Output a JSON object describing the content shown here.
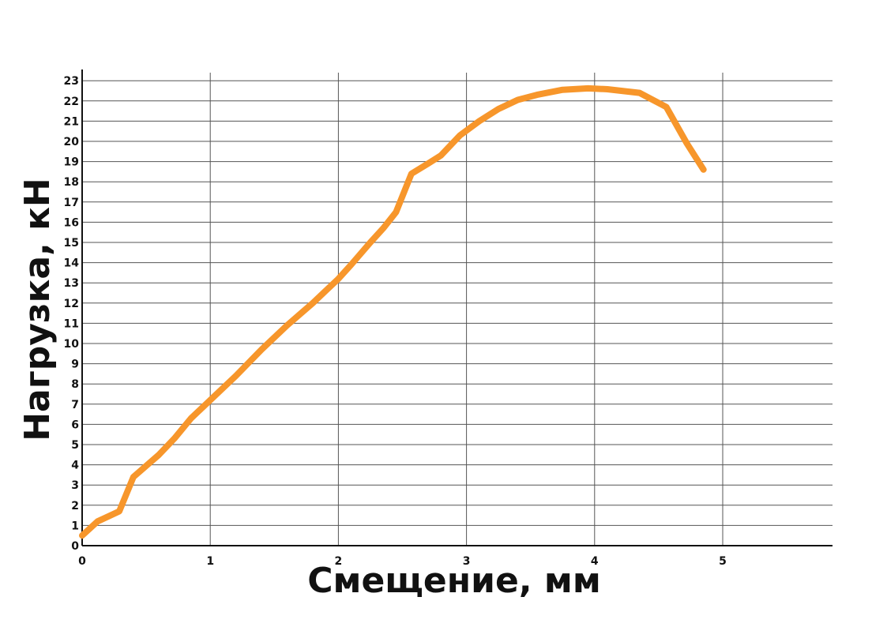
{
  "chart_data": {
    "type": "line",
    "title": "",
    "xlabel": "Смещение, мм",
    "ylabel": "Нагрузка, кН",
    "xlim": [
      0,
      5.85
    ],
    "ylim": [
      0,
      23.5
    ],
    "x_ticks": [
      "0",
      "1",
      "2",
      "3",
      "4",
      "5"
    ],
    "y_ticks": [
      "0",
      "1",
      "2",
      "3",
      "4",
      "5",
      "6",
      "7",
      "8",
      "9",
      "10",
      "11",
      "12",
      "13",
      "14",
      "15",
      "16",
      "17",
      "18",
      "19",
      "20",
      "21",
      "22",
      "23"
    ],
    "grid": true,
    "line_color": "#F7962B",
    "series": [
      {
        "x": [
          0.0,
          0.12,
          0.29,
          0.4,
          0.6,
          0.72,
          0.85,
          1.0,
          1.2,
          1.4,
          1.6,
          1.8,
          1.9,
          2.0,
          2.1,
          2.25,
          2.35,
          2.45,
          2.57,
          2.7,
          2.8,
          2.95,
          3.1,
          3.25,
          3.4,
          3.55,
          3.75,
          3.95,
          4.1,
          4.35,
          4.56,
          4.72,
          4.85
        ],
        "y": [
          0.5,
          1.2,
          1.7,
          3.4,
          4.5,
          5.3,
          6.3,
          7.2,
          8.4,
          9.7,
          10.9,
          12.0,
          12.6,
          13.2,
          13.9,
          15.0,
          15.7,
          16.5,
          18.4,
          18.9,
          19.3,
          20.3,
          21.0,
          21.6,
          22.05,
          22.3,
          22.55,
          22.62,
          22.58,
          22.4,
          21.7,
          19.9,
          18.6
        ]
      }
    ]
  }
}
